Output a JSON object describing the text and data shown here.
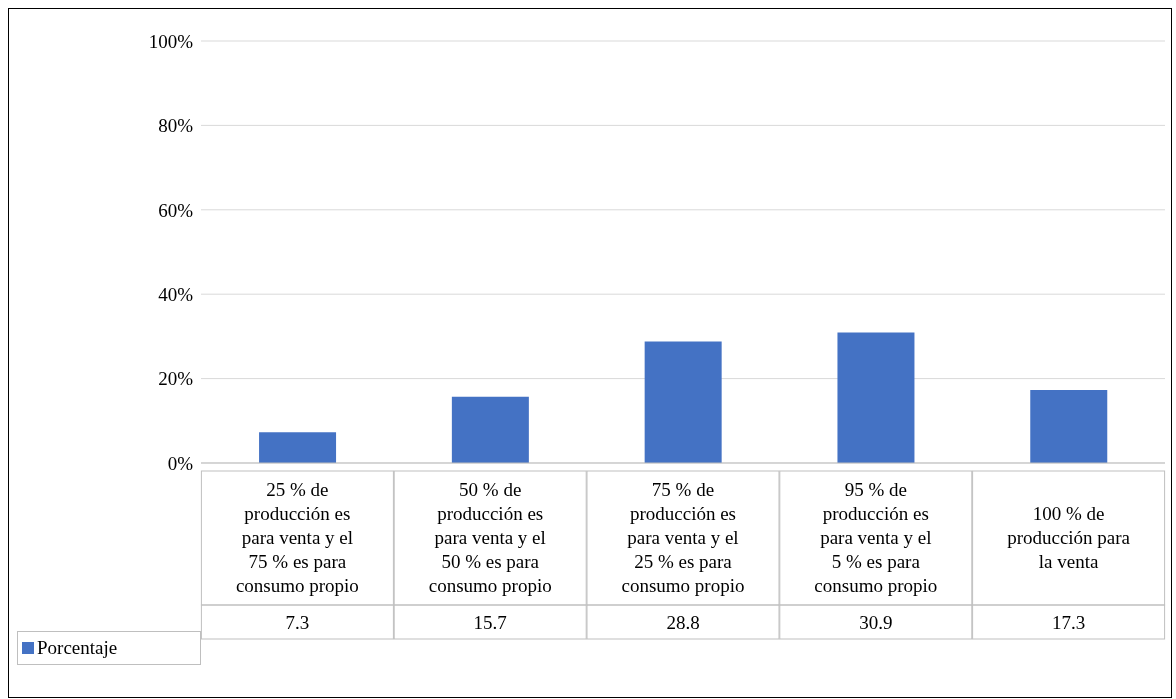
{
  "chart_data": {
    "type": "bar",
    "categories": [
      "25 % de producción es para venta y el 75 % es para consumo propio",
      "50 % de producción es para venta y el 50 % es para consumo propio",
      "75 % de producción es para venta y el 25 % es para consumo propio",
      "95 % de producción es para venta y el 5 % es para consumo propio",
      "100 % de producción para la venta"
    ],
    "series": [
      {
        "name": "Porcentaje",
        "color": "#4472c4",
        "values": [
          7.3,
          15.7,
          28.8,
          30.9,
          17.3
        ]
      }
    ],
    "ylim": [
      0,
      100
    ],
    "yticks": [
      {
        "value": 0,
        "label": "0%"
      },
      {
        "value": 20,
        "label": "20%"
      },
      {
        "value": 40,
        "label": "40%"
      },
      {
        "value": 60,
        "label": "60%"
      },
      {
        "value": 80,
        "label": "80%"
      },
      {
        "value": 100,
        "label": "100%"
      }
    ],
    "grid": "y",
    "legend": "bottom left",
    "data_labels": true
  }
}
